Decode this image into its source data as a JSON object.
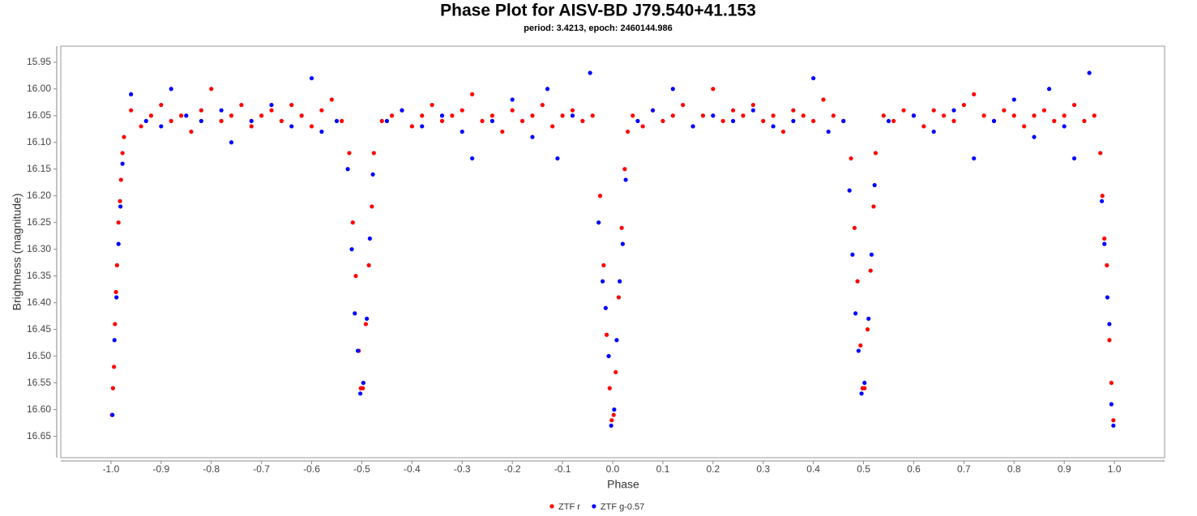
{
  "chart_data": {
    "type": "scatter",
    "title": "Phase Plot for AISV-BD J79.540+41.153",
    "subtitle": "period: 3.4213, epoch: 2460144.986",
    "x_label": "Phase",
    "y_label": "Brightness (magnitude)",
    "xlim": [
      -1.1,
      1.1
    ],
    "ylim": [
      15.92,
      16.69
    ],
    "y_inverted": true,
    "grid": false,
    "legend": "bottom",
    "xticks": [
      {
        "value": -1.0,
        "label": "-1.0"
      },
      -0.9,
      -0.8,
      -0.7,
      -0.6,
      -0.5,
      -0.4,
      -0.3,
      -0.2,
      -0.1,
      {
        "value": 0,
        "label": "0.0"
      },
      0.1,
      0.2,
      0.3,
      0.4,
      0.5,
      0.6,
      0.7,
      0.8,
      0.9,
      {
        "value": 1.0,
        "label": "1.0"
      }
    ],
    "yticks": [
      15.95,
      {
        "value": 16.0,
        "label": "16.00"
      },
      16.05,
      {
        "value": 16.1,
        "label": "16.10"
      },
      16.15,
      {
        "value": 16.2,
        "label": "16.20"
      },
      16.25,
      {
        "value": 16.3,
        "label": "16.30"
      },
      16.35,
      {
        "value": 16.4,
        "label": "16.40"
      },
      16.45,
      {
        "value": 16.5,
        "label": "16.50"
      },
      16.55,
      {
        "value": 16.6,
        "label": "16.60"
      },
      16.65
    ],
    "series": [
      {
        "name": "ZTF r",
        "color": "#ff0000",
        "x": [
          -0.998,
          -0.996,
          -0.994,
          -0.992,
          -0.99,
          -0.988,
          -0.985,
          -0.982,
          -0.98,
          -0.977,
          -0.974,
          -0.96,
          -0.94,
          -0.92,
          -0.9,
          -0.88,
          -0.86,
          -0.84,
          -0.82,
          -0.8,
          -0.78,
          -0.76,
          -0.74,
          -0.72,
          -0.7,
          -0.68,
          -0.66,
          -0.64,
          -0.62,
          -0.6,
          -0.58,
          -0.56,
          -0.54,
          -0.525,
          -0.518,
          -0.512,
          -0.506,
          -0.502,
          -0.498,
          -0.492,
          -0.486,
          -0.48,
          -0.476,
          -0.46,
          -0.44,
          -0.42,
          -0.4,
          -0.38,
          -0.36,
          -0.34,
          -0.32,
          -0.3,
          -0.28,
          -0.26,
          -0.24,
          -0.22,
          -0.2,
          -0.18,
          -0.16,
          -0.14,
          -0.12,
          -0.1,
          -0.08,
          -0.06,
          -0.04,
          -0.025,
          -0.018,
          -0.012,
          -0.006,
          -0.002,
          0.002,
          0.006,
          0.012,
          0.018,
          0.024,
          0.03,
          0.04,
          0.06,
          0.08,
          0.1,
          0.12,
          0.14,
          0.16,
          0.18,
          0.2,
          0.22,
          0.24,
          0.26,
          0.28,
          0.3,
          0.32,
          0.34,
          0.36,
          0.38,
          0.4,
          0.42,
          0.44,
          0.46,
          0.475,
          0.482,
          0.488,
          0.494,
          0.498,
          0.502,
          0.508,
          0.514,
          0.52,
          0.524,
          0.54,
          0.56,
          0.58,
          0.6,
          0.62,
          0.64,
          0.66,
          0.68,
          0.7,
          0.72,
          0.74,
          0.76,
          0.78,
          0.8,
          0.82,
          0.84,
          0.86,
          0.88,
          0.9,
          0.92,
          0.94,
          0.96,
          0.972,
          0.976,
          0.98,
          0.985,
          0.99,
          0.994,
          0.998
        ],
        "values": [
          16.61,
          16.56,
          16.52,
          16.44,
          16.38,
          16.33,
          16.25,
          16.21,
          16.17,
          16.12,
          16.09,
          16.04,
          16.07,
          16.05,
          16.03,
          16.06,
          16.05,
          16.08,
          16.04,
          16.0,
          16.06,
          16.05,
          16.03,
          16.07,
          16.05,
          16.04,
          16.06,
          16.03,
          16.05,
          16.07,
          16.04,
          16.02,
          16.06,
          16.12,
          16.25,
          16.35,
          16.49,
          16.56,
          16.56,
          16.44,
          16.33,
          16.22,
          16.12,
          16.06,
          16.05,
          16.04,
          16.07,
          16.05,
          16.03,
          16.06,
          16.05,
          16.04,
          16.01,
          16.06,
          16.05,
          16.08,
          16.04,
          16.06,
          16.05,
          16.03,
          16.07,
          16.05,
          16.04,
          16.06,
          16.05,
          16.2,
          16.33,
          16.46,
          16.56,
          16.62,
          16.61,
          16.53,
          16.39,
          16.26,
          16.15,
          16.08,
          16.05,
          16.07,
          16.04,
          16.06,
          16.05,
          16.03,
          16.07,
          16.05,
          16.0,
          16.06,
          16.04,
          16.05,
          16.03,
          16.06,
          16.05,
          16.08,
          16.04,
          16.05,
          16.06,
          16.02,
          16.05,
          16.06,
          16.13,
          16.26,
          16.36,
          16.48,
          16.56,
          16.56,
          16.45,
          16.34,
          16.22,
          16.12,
          16.05,
          16.06,
          16.04,
          16.05,
          16.07,
          16.04,
          16.05,
          16.06,
          16.03,
          16.01,
          16.05,
          16.06,
          16.04,
          16.05,
          16.07,
          16.05,
          16.04,
          16.06,
          16.05,
          16.03,
          16.06,
          16.05,
          16.12,
          16.2,
          16.28,
          16.33,
          16.47,
          16.55,
          16.62
        ]
      },
      {
        "name": "ZTF g-0.57",
        "color": "#0000ff",
        "x": [
          -0.997,
          -0.993,
          -0.989,
          -0.985,
          -0.981,
          -0.977,
          -0.96,
          -0.93,
          -0.9,
          -0.88,
          -0.85,
          -0.82,
          -0.78,
          -0.76,
          -0.72,
          -0.68,
          -0.64,
          -0.6,
          -0.58,
          -0.55,
          -0.528,
          -0.52,
          -0.514,
          -0.508,
          -0.503,
          -0.497,
          -0.49,
          -0.484,
          -0.478,
          -0.45,
          -0.42,
          -0.38,
          -0.34,
          -0.3,
          -0.28,
          -0.24,
          -0.2,
          -0.16,
          -0.13,
          -0.11,
          -0.08,
          -0.045,
          -0.028,
          -0.02,
          -0.014,
          -0.008,
          -0.003,
          0.003,
          0.008,
          0.014,
          0.02,
          0.026,
          0.05,
          0.08,
          0.12,
          0.16,
          0.2,
          0.24,
          0.28,
          0.32,
          0.36,
          0.4,
          0.43,
          0.46,
          0.472,
          0.478,
          0.484,
          0.49,
          0.496,
          0.502,
          0.51,
          0.516,
          0.522,
          0.55,
          0.6,
          0.64,
          0.68,
          0.72,
          0.76,
          0.8,
          0.84,
          0.87,
          0.9,
          0.92,
          0.95,
          0.975,
          0.98,
          0.986,
          0.99,
          0.994,
          0.998
        ],
        "values": [
          16.61,
          16.47,
          16.39,
          16.29,
          16.22,
          16.14,
          16.01,
          16.06,
          16.07,
          16.0,
          16.05,
          16.06,
          16.04,
          16.1,
          16.06,
          16.03,
          16.07,
          15.98,
          16.08,
          16.06,
          16.15,
          16.3,
          16.42,
          16.49,
          16.57,
          16.55,
          16.43,
          16.28,
          16.16,
          16.06,
          16.04,
          16.07,
          16.05,
          16.08,
          16.13,
          16.06,
          16.02,
          16.09,
          16.0,
          16.13,
          16.05,
          15.97,
          16.25,
          16.36,
          16.41,
          16.5,
          16.63,
          16.6,
          16.47,
          16.36,
          16.29,
          16.17,
          16.06,
          16.04,
          16.0,
          16.07,
          16.05,
          16.06,
          16.04,
          16.07,
          16.06,
          15.98,
          16.08,
          16.06,
          16.19,
          16.31,
          16.42,
          16.49,
          16.57,
          16.55,
          16.43,
          16.31,
          16.18,
          16.06,
          16.05,
          16.08,
          16.04,
          16.13,
          16.06,
          16.02,
          16.09,
          16.0,
          16.07,
          16.13,
          15.97,
          16.21,
          16.29,
          16.39,
          16.44,
          16.59,
          16.63
        ]
      }
    ]
  }
}
